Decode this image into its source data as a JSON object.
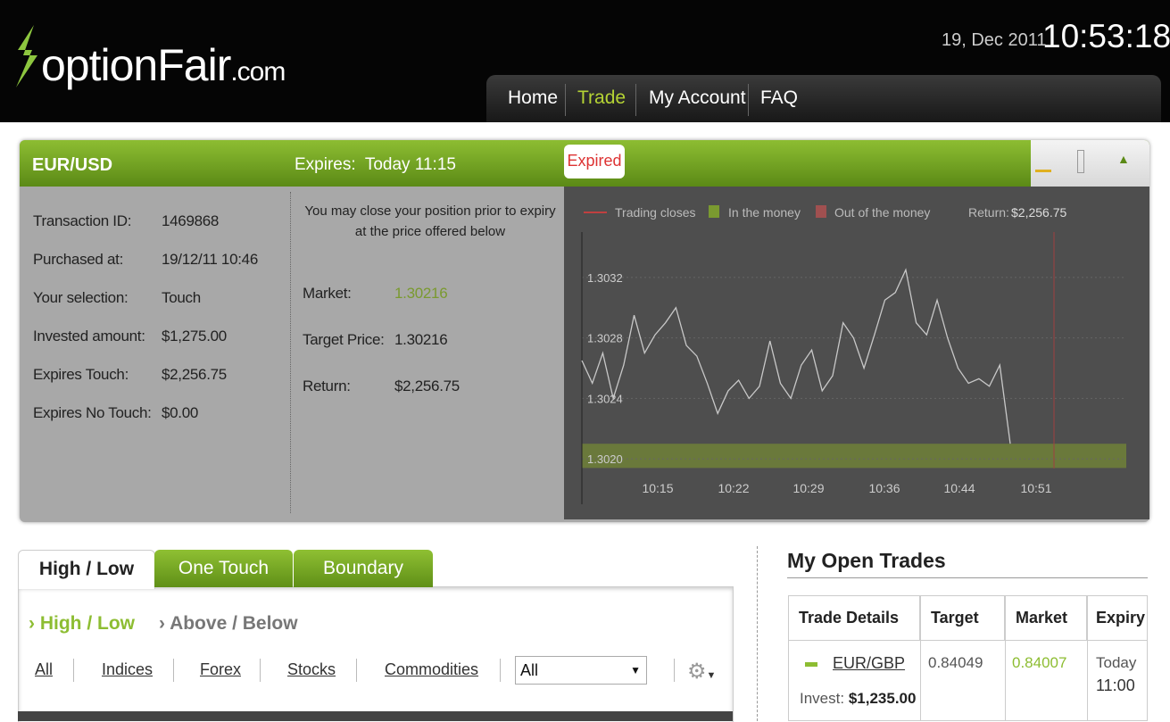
{
  "header": {
    "logo": "optionFair",
    "logo_suffix": ".com",
    "date": "19, Dec 2011",
    "time": "10:53:18",
    "nav": [
      "Home",
      "Trade",
      "My Account",
      "FAQ"
    ]
  },
  "panel": {
    "asset": "EUR/USD",
    "expires": "Expires:  Today 11:15",
    "status": "Expired",
    "details": [
      [
        "Transaction ID:",
        "1469868"
      ],
      [
        "Purchased at:",
        "19/12/11 10:46"
      ],
      [
        "Your selection:",
        "Touch"
      ],
      [
        "Invested amount:",
        "$1,275.00"
      ],
      [
        "Expires Touch:",
        "$2,256.75"
      ],
      [
        "Expires No Touch:",
        "$0.00"
      ]
    ],
    "note": "You may close your position prior to expiry at the price offered below",
    "offer": [
      [
        "Market:",
        "1.30216"
      ],
      [
        "Target Price:",
        "1.30216"
      ],
      [
        "Return:",
        "$2,256.75"
      ]
    ]
  },
  "chart_data": {
    "type": "line",
    "legend": [
      "Trading closes",
      "In the money",
      "Out of the money"
    ],
    "return_label": "Return:",
    "return_value": "$2,256.75",
    "xticks": [
      "10:15",
      "10:22",
      "10:29",
      "10:36",
      "10:44",
      "10:51"
    ],
    "ylim": [
      1.3017,
      1.3035
    ],
    "yticks": [
      {
        "value": 1.302,
        "label": "1.3020"
      },
      1.3024,
      1.3028,
      1.3032
    ],
    "in_the_money": [
      1.30194,
      1.3021
    ],
    "color": "#c8c8c8",
    "values": [
      1.30265,
      1.3025,
      1.3027,
      1.3024,
      1.30262,
      1.30295,
      1.3027,
      1.30282,
      1.3029,
      1.303,
      1.30275,
      1.30268,
      1.3025,
      1.3023,
      1.30245,
      1.30252,
      1.3024,
      1.30248,
      1.30278,
      1.3025,
      1.3024,
      1.30262,
      1.30272,
      1.30245,
      1.30255,
      1.3029,
      1.3028,
      1.3026,
      1.30282,
      1.30305,
      1.3031,
      1.30325,
      1.3029,
      1.30282,
      1.30305,
      1.3028,
      1.3026,
      1.3025,
      1.30253,
      1.30248,
      1.30262,
      1.3021
    ]
  },
  "trade_tabs": {
    "tabs": [
      "High / Low",
      "One Touch",
      "Boundary"
    ],
    "subtabs": [
      "High / Low",
      "Above / Below"
    ],
    "filters": [
      "All",
      "Indices",
      "Forex",
      "Stocks",
      "Commodities"
    ],
    "select": "All"
  },
  "open_trades": {
    "title": "My Open Trades",
    "columns": [
      "Trade Details",
      "Target",
      "Market",
      "Expiry"
    ],
    "rows": [
      {
        "asset": "EUR/GBP",
        "invest_label": "Invest:",
        "invest": "$1,235.00",
        "target": "0.84049",
        "market": "0.84007",
        "expiry_day": "Today",
        "expiry_time": "11:00"
      }
    ]
  }
}
